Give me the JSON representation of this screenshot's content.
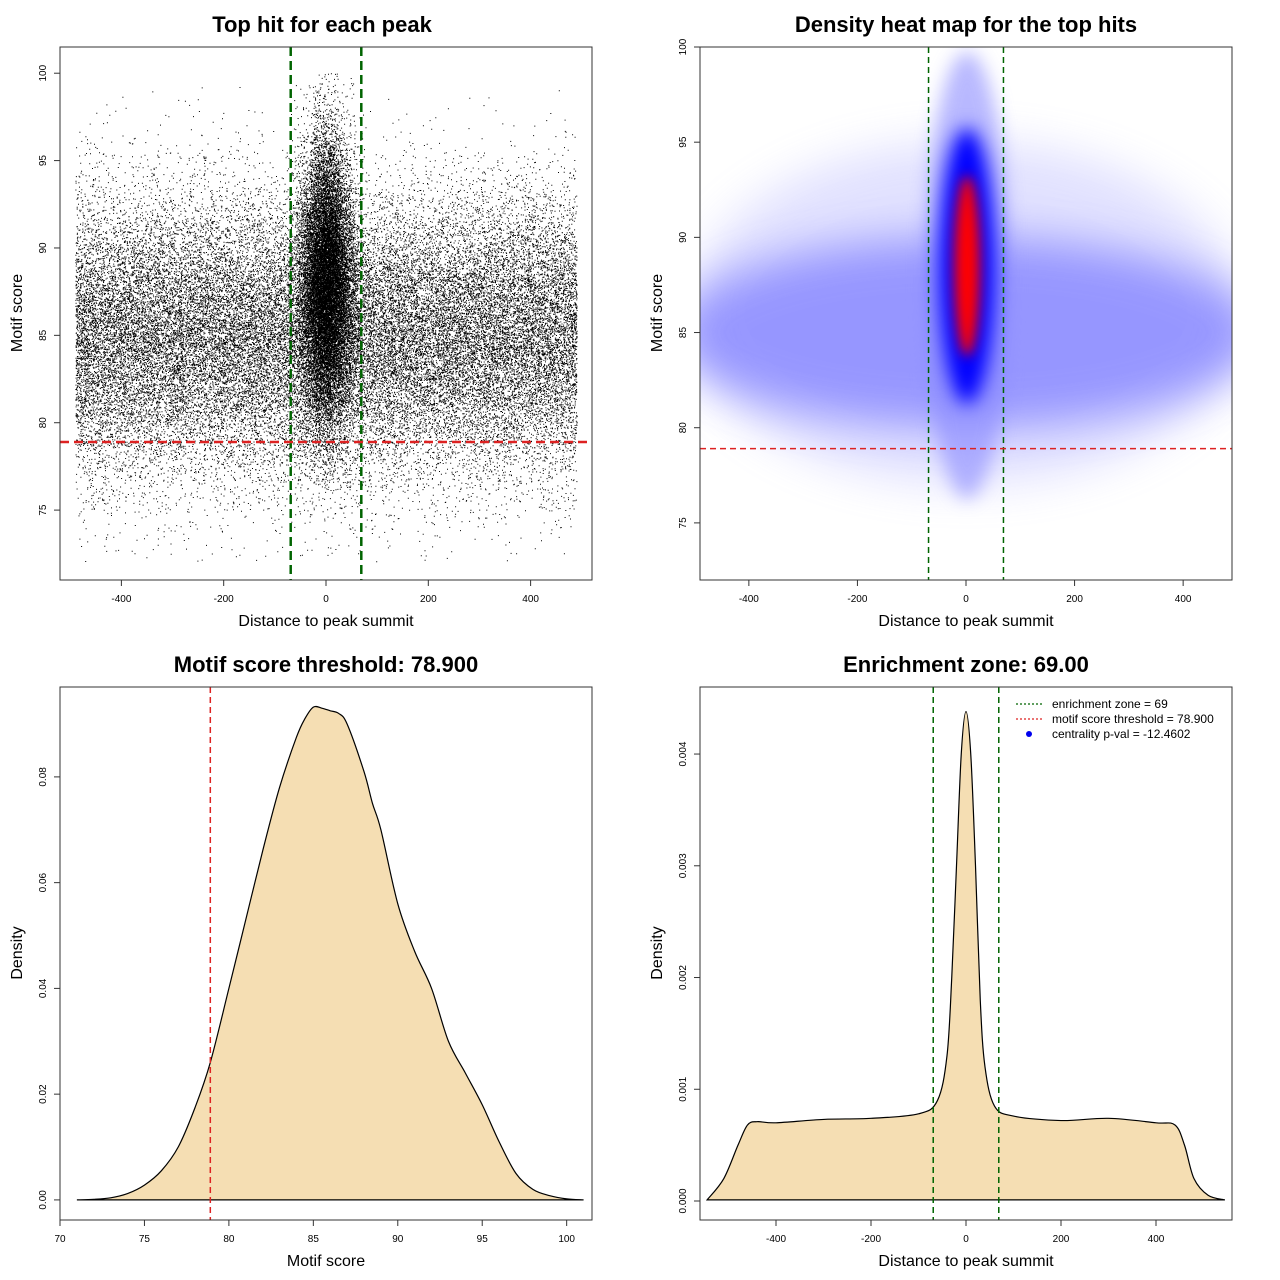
{
  "colors": {
    "zone_line": "#006400",
    "threshold_line": "#dd2222",
    "density_fill": "#f5deb3",
    "heat_low": "#8a8aff",
    "heat_mid": "#0000ff",
    "heat_high": "#ff0000",
    "legend_dot": "#0000ee"
  },
  "chart_data": [
    {
      "type": "scatter",
      "title": "Top hit for each peak",
      "xlabel": "Distance to peak summit",
      "ylabel": "Motif score",
      "xlim": [
        -520,
        520
      ],
      "ylim": [
        71,
        101.5
      ],
      "xticks": [
        "-400",
        "-200",
        "0",
        "200",
        "400"
      ],
      "yticks": [
        "75",
        "80",
        "85",
        "90",
        "95",
        "100"
      ],
      "enrichment_zone": 69,
      "threshold": 78.9,
      "x_range": [
        -490,
        490
      ],
      "background_mean": 85,
      "background_sd": 4,
      "center_mean": 88,
      "center_sd": 4,
      "center_x_sd": 25
    },
    {
      "type": "heatmap",
      "title": "Density heat map for the top hits",
      "xlabel": "Distance to peak summit",
      "ylabel": "Motif score",
      "xlim": [
        -490,
        490
      ],
      "ylim": [
        72,
        100
      ],
      "xticks": [
        "-400",
        "-200",
        "0",
        "200",
        "400"
      ],
      "yticks": [
        "75",
        "80",
        "85",
        "90",
        "95",
        "100"
      ],
      "enrichment_zone": 69,
      "threshold": 78.9,
      "peak_center": [
        2,
        88.5
      ]
    },
    {
      "type": "area",
      "title": "Motif score threshold: 78.900",
      "xlabel": "Motif score",
      "ylabel": "Density",
      "xlim": [
        70,
        101.5
      ],
      "ylim": [
        -0.0038,
        0.097
      ],
      "xticks": [
        "70",
        "75",
        "80",
        "85",
        "90",
        "95",
        "100"
      ],
      "yticks": [
        "0.00",
        "0.02",
        "0.04",
        "0.06",
        "0.08"
      ],
      "threshold": 78.9,
      "x": [
        71,
        72,
        73,
        74,
        75,
        76,
        77,
        78,
        78.9,
        80,
        81,
        82,
        83,
        84,
        84.5,
        85,
        85.5,
        86,
        86.5,
        87,
        88,
        88.5,
        89,
        90,
        91,
        92,
        93,
        94,
        95,
        96,
        97,
        98,
        99,
        100,
        101
      ],
      "y": [
        0,
        0.0001,
        0.0004,
        0.0012,
        0.0028,
        0.0055,
        0.01,
        0.0175,
        0.026,
        0.04,
        0.053,
        0.066,
        0.078,
        0.0875,
        0.091,
        0.0932,
        0.093,
        0.0925,
        0.092,
        0.09,
        0.081,
        0.075,
        0.07,
        0.056,
        0.047,
        0.04,
        0.03,
        0.024,
        0.018,
        0.011,
        0.005,
        0.002,
        0.0008,
        0.0002,
        0
      ]
    },
    {
      "type": "area",
      "title": "Enrichment zone: 69.00",
      "xlabel": "Distance to peak summit",
      "ylabel": "Density",
      "xlim": [
        -560,
        560
      ],
      "ylim": [
        -0.00017,
        0.0046
      ],
      "xticks": [
        "-400",
        "-200",
        "0",
        "200",
        "400"
      ],
      "yticks": [
        "0.000",
        "0.001",
        "0.002",
        "0.003",
        "0.004"
      ],
      "enrichment_zone": 69,
      "x": [
        -545,
        -510,
        -480,
        -460,
        -440,
        -400,
        -300,
        -200,
        -100,
        -60,
        -40,
        -30,
        -20,
        -10,
        0,
        10,
        20,
        30,
        40,
        60,
        100,
        200,
        300,
        400,
        440,
        460,
        480,
        510,
        545
      ],
      "y": [
        1e-05,
        0.0002,
        0.0005,
        0.00068,
        0.00071,
        0.0007,
        0.00073,
        0.00074,
        0.00078,
        0.0009,
        0.0013,
        0.002,
        0.003,
        0.004,
        0.00438,
        0.004,
        0.003,
        0.0018,
        0.0012,
        0.00085,
        0.00076,
        0.00072,
        0.00074,
        0.0007,
        0.00068,
        0.0005,
        0.0002,
        5e-05,
        1e-05
      ],
      "legend": [
        {
          "label": "enrichment zone = 69",
          "style": "dotted-green"
        },
        {
          "label": "motif score threshold = 78.900",
          "style": "dotted-red"
        },
        {
          "label": "centrality p-val = -12.4602",
          "style": "dot-blue"
        }
      ]
    }
  ]
}
